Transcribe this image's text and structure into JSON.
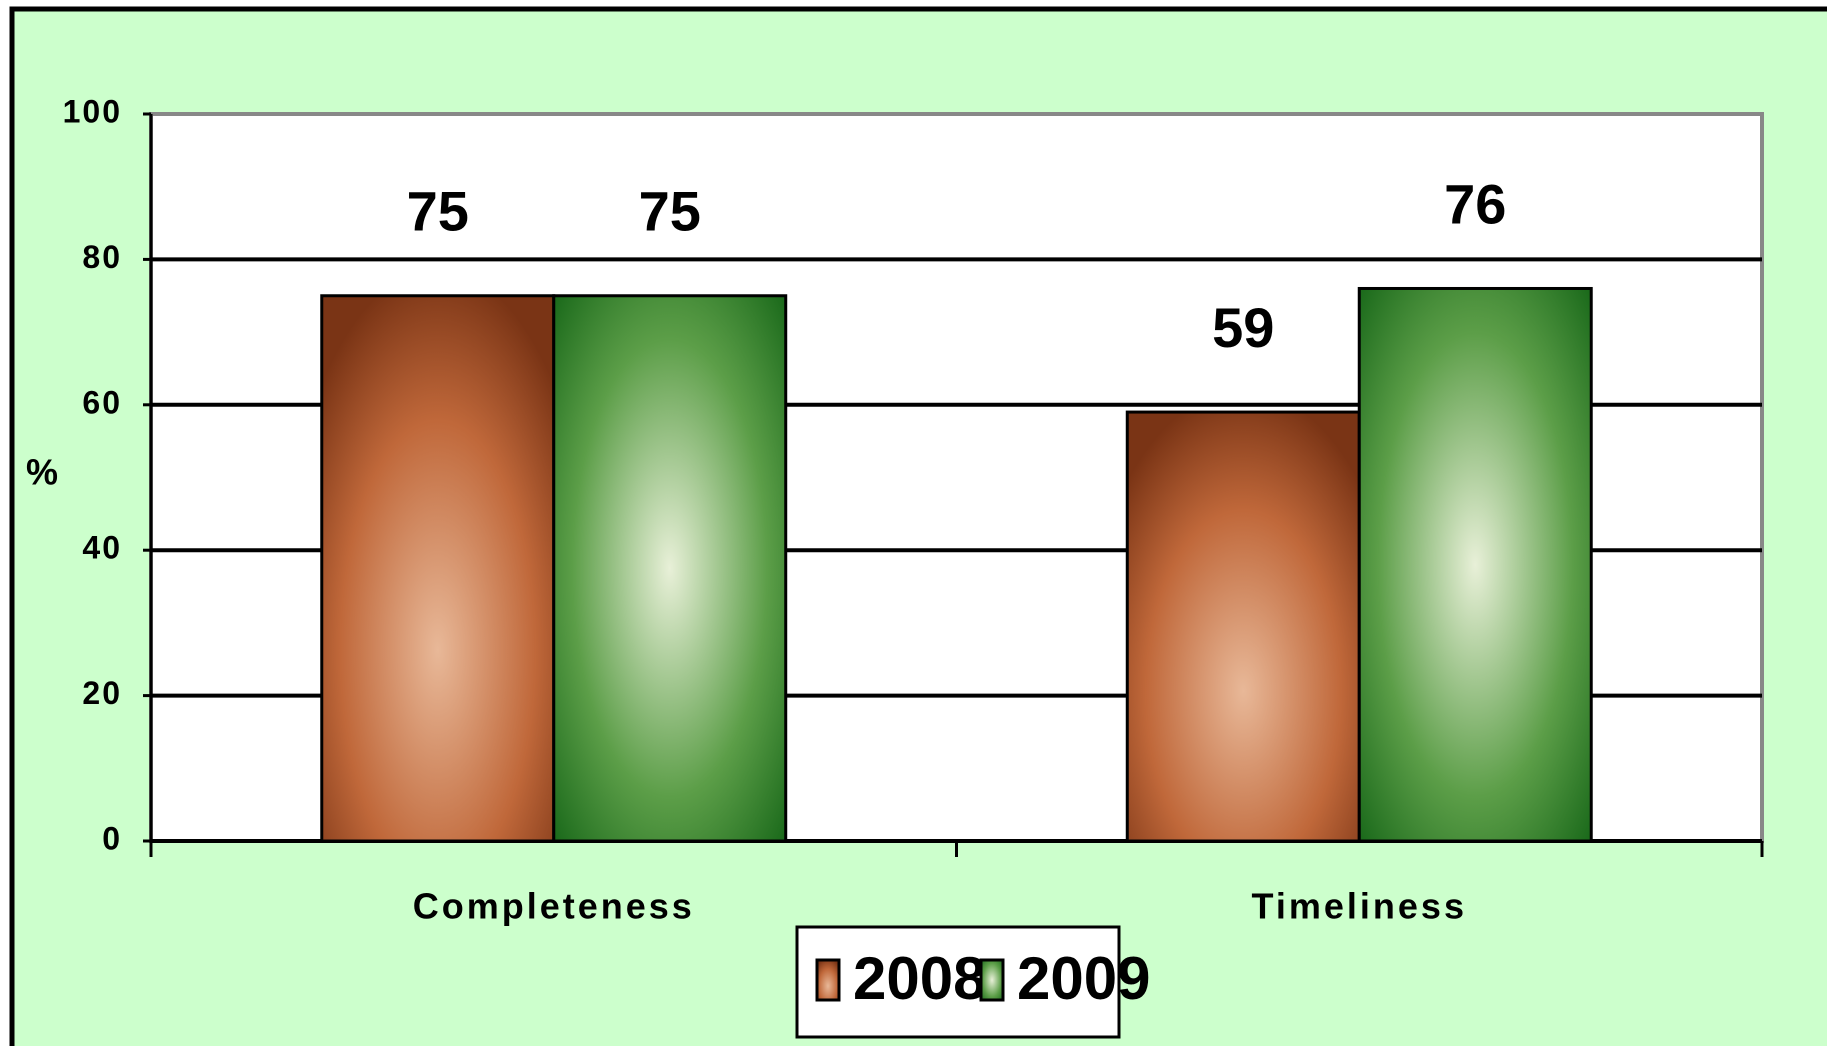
{
  "chart_data": {
    "type": "bar",
    "categories": [
      "Completeness",
      "Timeliness"
    ],
    "series": [
      {
        "name": "2008",
        "color": "#8b4220",
        "values": [
          75,
          59
        ]
      },
      {
        "name": "2009",
        "color": "#237a23",
        "values": [
          75,
          76
        ]
      }
    ],
    "y_label": "%",
    "ylim": [
      0,
      100
    ],
    "yticks": [
      0,
      20,
      40,
      60,
      80,
      100
    ],
    "grid": true,
    "legend": "bottom"
  }
}
